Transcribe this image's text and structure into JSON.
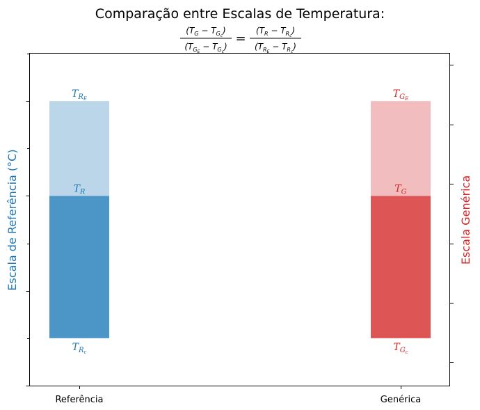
{
  "chart_data": {
    "type": "bar",
    "title": "Comparação entre Escalas de Temperatura:",
    "formula": {
      "left_numerator": "(T_G - T_Gc)",
      "left_denominator": "(T_GE - T_Gc)",
      "equals": "=",
      "right_numerator": "(T_R - T_Rc)",
      "right_denominator": "(T_RE - T_Rc)"
    },
    "categories": [
      "Referência",
      "Genérica"
    ],
    "left_axis": {
      "label": "Escala de Referência (°C)",
      "color": "#1f77b4",
      "tick_labels_shown": false
    },
    "right_axis": {
      "label": "Escala Genérica",
      "color": "#d62728",
      "tick_labels_shown": false
    },
    "series": [
      {
        "category": "Referência",
        "lower_color": "#4c96c7",
        "upper_color": "#bbd6e9",
        "labels": {
          "top": "T_RE",
          "middle": "T_R",
          "bottom": "T_Rc"
        },
        "values": {
          "bottom": 0,
          "middle": 0.6,
          "top": 1.0
        }
      },
      {
        "category": "Genérica",
        "lower_color": "#de5556",
        "upper_color": "#f1bdbe",
        "labels": {
          "top": "T_GE",
          "middle": "T_G",
          "bottom": "T_Gc"
        },
        "values": {
          "bottom": 0,
          "middle": 0.6,
          "top": 1.0
        }
      }
    ],
    "ylim": [
      -0.2,
      1.2
    ],
    "grid": false,
    "legend": "none"
  }
}
